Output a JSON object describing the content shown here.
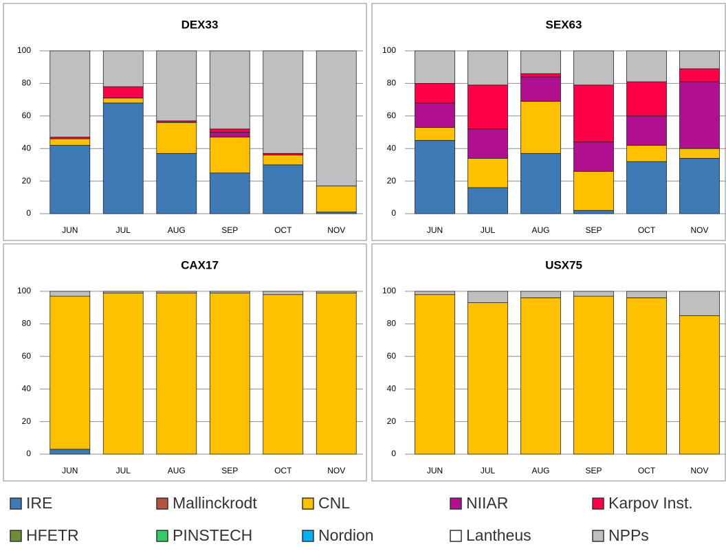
{
  "chart_data": [
    {
      "type": "bar",
      "stacked": true,
      "title": "DEX33",
      "categories": [
        "JUN",
        "JUL",
        "AUG",
        "SEP",
        "OCT",
        "NOV"
      ],
      "ylim": [
        0,
        100
      ],
      "yticks": [
        0,
        20,
        40,
        60,
        80,
        100
      ],
      "grid": true,
      "series": [
        {
          "name": "IRE",
          "color": "#3d7ab6",
          "values": [
            42,
            68,
            37,
            25,
            30,
            1
          ]
        },
        {
          "name": "Mallinckrodt",
          "color": "#b5513f",
          "values": [
            0,
            0,
            0,
            0,
            0,
            0
          ]
        },
        {
          "name": "CNL",
          "color": "#ffc000",
          "values": [
            4,
            3,
            19,
            22,
            6,
            16
          ]
        },
        {
          "name": "NIIAR",
          "color": "#b0108f",
          "values": [
            0,
            0,
            0,
            3,
            0,
            0
          ]
        },
        {
          "name": "Karpov Inst.",
          "color": "#ff0048",
          "values": [
            1,
            7,
            1,
            2,
            1,
            0
          ]
        },
        {
          "name": "HFETR",
          "color": "#6e8c3a",
          "values": [
            0,
            0,
            0,
            0,
            0,
            0
          ]
        },
        {
          "name": "PINSTECH",
          "color": "#33cc66",
          "values": [
            0,
            0,
            0,
            0,
            0,
            0
          ]
        },
        {
          "name": "Nordion",
          "color": "#00b0f0",
          "values": [
            0,
            0,
            0,
            0,
            0,
            0
          ]
        },
        {
          "name": "Lantheus",
          "color": "#ffffff",
          "values": [
            0,
            0,
            0,
            0,
            0,
            0
          ]
        },
        {
          "name": "NPPs",
          "color": "#bfbfbf",
          "values": [
            53,
            22,
            43,
            48,
            63,
            83
          ]
        }
      ]
    },
    {
      "type": "bar",
      "stacked": true,
      "title": "SEX63",
      "categories": [
        "JUN",
        "JUL",
        "AUG",
        "SEP",
        "OCT",
        "NOV"
      ],
      "ylim": [
        0,
        100
      ],
      "yticks": [
        0,
        20,
        40,
        60,
        80,
        100
      ],
      "grid": true,
      "series": [
        {
          "name": "IRE",
          "color": "#3d7ab6",
          "values": [
            45,
            16,
            37,
            2,
            32,
            34
          ]
        },
        {
          "name": "Mallinckrodt",
          "color": "#b5513f",
          "values": [
            0,
            0,
            0,
            0,
            0,
            0
          ]
        },
        {
          "name": "CNL",
          "color": "#ffc000",
          "values": [
            8,
            18,
            32,
            24,
            10,
            6
          ]
        },
        {
          "name": "NIIAR",
          "color": "#b0108f",
          "values": [
            15,
            18,
            15,
            18,
            18,
            41
          ]
        },
        {
          "name": "Karpov Inst.",
          "color": "#ff0048",
          "values": [
            12,
            27,
            2,
            35,
            21,
            8
          ]
        },
        {
          "name": "HFETR",
          "color": "#6e8c3a",
          "values": [
            0,
            0,
            0,
            0,
            0,
            0
          ]
        },
        {
          "name": "PINSTECH",
          "color": "#33cc66",
          "values": [
            0,
            0,
            0,
            0,
            0,
            0
          ]
        },
        {
          "name": "Nordion",
          "color": "#00b0f0",
          "values": [
            0,
            0,
            0,
            0,
            0,
            0
          ]
        },
        {
          "name": "Lantheus",
          "color": "#ffffff",
          "values": [
            0,
            0,
            0,
            0,
            0,
            0
          ]
        },
        {
          "name": "NPPs",
          "color": "#bfbfbf",
          "values": [
            20,
            21,
            14,
            21,
            19,
            11
          ]
        }
      ]
    },
    {
      "type": "bar",
      "stacked": true,
      "title": "CAX17",
      "categories": [
        "JUN",
        "JUL",
        "AUG",
        "SEP",
        "OCT",
        "NOV"
      ],
      "ylim": [
        0,
        100
      ],
      "yticks": [
        0,
        20,
        40,
        60,
        80,
        100
      ],
      "grid": true,
      "series": [
        {
          "name": "IRE",
          "color": "#3d7ab6",
          "values": [
            3,
            0,
            0,
            0,
            0,
            0
          ]
        },
        {
          "name": "Mallinckrodt",
          "color": "#b5513f",
          "values": [
            0,
            0,
            0,
            0,
            0,
            0
          ]
        },
        {
          "name": "CNL",
          "color": "#ffc000",
          "values": [
            94,
            99,
            99,
            99,
            98,
            99
          ]
        },
        {
          "name": "NIIAR",
          "color": "#b0108f",
          "values": [
            0,
            0,
            0,
            0,
            0,
            0
          ]
        },
        {
          "name": "Karpov Inst.",
          "color": "#ff0048",
          "values": [
            0,
            0,
            0,
            0,
            0,
            0
          ]
        },
        {
          "name": "HFETR",
          "color": "#6e8c3a",
          "values": [
            0,
            0,
            0,
            0,
            0,
            0
          ]
        },
        {
          "name": "PINSTECH",
          "color": "#33cc66",
          "values": [
            0,
            0,
            0,
            0,
            0,
            0
          ]
        },
        {
          "name": "Nordion",
          "color": "#00b0f0",
          "values": [
            0,
            0,
            0,
            0,
            0,
            0
          ]
        },
        {
          "name": "Lantheus",
          "color": "#ffffff",
          "values": [
            0,
            0,
            0,
            0,
            0,
            0
          ]
        },
        {
          "name": "NPPs",
          "color": "#bfbfbf",
          "values": [
            3,
            1,
            1,
            1,
            2,
            1
          ]
        }
      ]
    },
    {
      "type": "bar",
      "stacked": true,
      "title": "USX75",
      "categories": [
        "JUN",
        "JUL",
        "AUG",
        "SEP",
        "OCT",
        "NOV"
      ],
      "ylim": [
        0,
        100
      ],
      "yticks": [
        0,
        20,
        40,
        60,
        80,
        100
      ],
      "grid": true,
      "series": [
        {
          "name": "IRE",
          "color": "#3d7ab6",
          "values": [
            0,
            0,
            0,
            0,
            0,
            0
          ]
        },
        {
          "name": "Mallinckrodt",
          "color": "#b5513f",
          "values": [
            0,
            0,
            0,
            0,
            0,
            0
          ]
        },
        {
          "name": "CNL",
          "color": "#ffc000",
          "values": [
            98,
            93,
            96,
            97,
            96,
            85
          ]
        },
        {
          "name": "NIIAR",
          "color": "#b0108f",
          "values": [
            0,
            0,
            0,
            0,
            0,
            0
          ]
        },
        {
          "name": "Karpov Inst.",
          "color": "#ff0048",
          "values": [
            0,
            0,
            0,
            0,
            0,
            0
          ]
        },
        {
          "name": "HFETR",
          "color": "#6e8c3a",
          "values": [
            0,
            0,
            0,
            0,
            0,
            0
          ]
        },
        {
          "name": "PINSTECH",
          "color": "#33cc66",
          "values": [
            0,
            0,
            0,
            0,
            0,
            0
          ]
        },
        {
          "name": "Nordion",
          "color": "#00b0f0",
          "values": [
            0,
            0,
            0,
            0,
            0,
            0
          ]
        },
        {
          "name": "Lantheus",
          "color": "#ffffff",
          "values": [
            0,
            0,
            0,
            0,
            0,
            0
          ]
        },
        {
          "name": "NPPs",
          "color": "#bfbfbf",
          "values": [
            2,
            7,
            4,
            3,
            4,
            15
          ]
        }
      ]
    }
  ]
}
